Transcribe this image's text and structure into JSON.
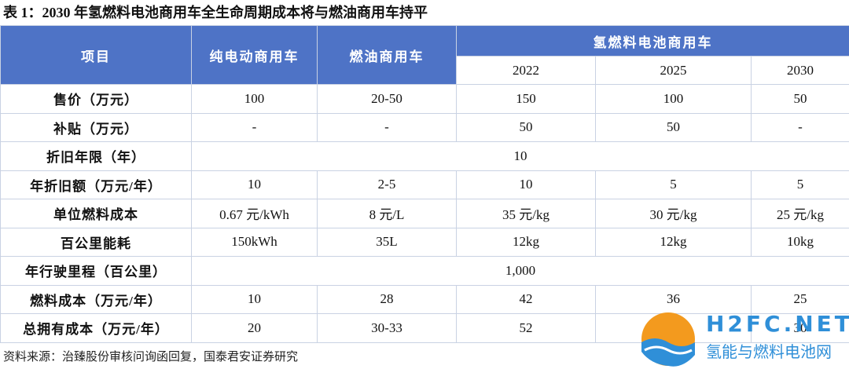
{
  "title": "表 1：2030 年氢燃料电池商用车全生命周期成本将与燃油商用车持平",
  "table": {
    "header": {
      "item": "项目",
      "ev": "纯电动商用车",
      "fuel": "燃油商用车",
      "fcv": "氢燃料电池商用车",
      "years": [
        "2022",
        "2025",
        "2030"
      ]
    },
    "rows": [
      [
        "售价（万元）",
        "100",
        "20-50",
        "150",
        "100",
        "50"
      ],
      [
        "补贴（万元）",
        "-",
        "-",
        "50",
        "50",
        "-"
      ],
      [
        "折旧年限（年）",
        "10"
      ],
      [
        "年折旧额（万元/年）",
        "10",
        "2-5",
        "10",
        "5",
        "5"
      ],
      [
        "单位燃料成本",
        "0.67 元/kWh",
        "8 元/L",
        "35 元/kg",
        "30 元/kg",
        "25 元/kg"
      ],
      [
        "百公里能耗",
        "150kWh",
        "35L",
        "12kg",
        "12kg",
        "10kg"
      ],
      [
        "年行驶里程（百公里）",
        "1,000"
      ],
      [
        "燃料成本（万元/年）",
        "10",
        "28",
        "42",
        "36",
        "25"
      ],
      [
        "总拥有成本（万元/年）",
        "20",
        "30-33",
        "52",
        "",
        "30"
      ]
    ]
  },
  "source": "资料来源：治臻股份审核问询函回复，国泰君安证券研究",
  "watermark": {
    "en": "H2FC.NET",
    "cn": "氢能与燃料电池网"
  }
}
